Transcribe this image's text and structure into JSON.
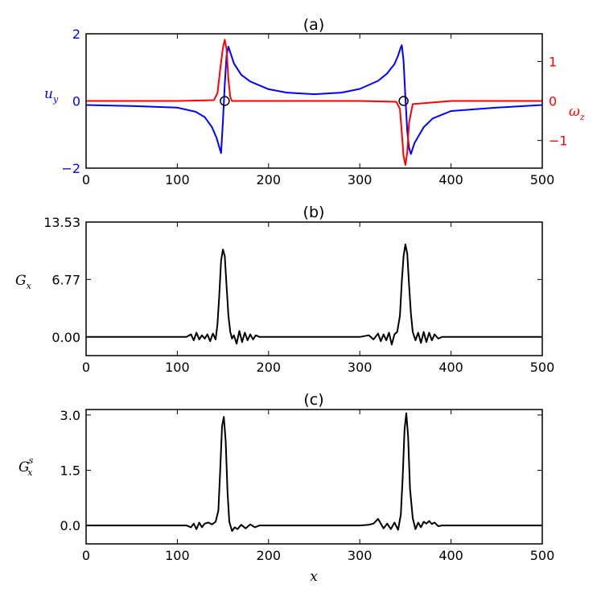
{
  "chart_data": [
    {
      "type": "line",
      "title": "(a)",
      "xlim": [
        0,
        500
      ],
      "x_ticks": [
        "0",
        "100",
        "200",
        "300",
        "400",
        "500"
      ],
      "left_axis": {
        "label_base": "u",
        "label_sub": "y",
        "color": "#0000ff",
        "ylim": [
          -2,
          2
        ],
        "ticks": [
          {
            "value": 2,
            "label": "2"
          },
          {
            "value": 0,
            "label": "0"
          },
          {
            "value": -2,
            "label": "−2"
          }
        ]
      },
      "right_axis": {
        "label_base": "ω",
        "label_sub": "z",
        "color": "#ff0000",
        "ylim": [
          -1.7,
          1.7
        ],
        "ticks": [
          {
            "value": 1,
            "label": "1"
          },
          {
            "value": 0,
            "label": "0"
          },
          {
            "value": -1,
            "label": "−1"
          }
        ]
      },
      "series": [
        {
          "axis": "left",
          "color": "#0000ff",
          "x": [
            0,
            50,
            100,
            120,
            130,
            138,
            143,
            146,
            148,
            150,
            152,
            154,
            156,
            158,
            162,
            170,
            180,
            200,
            220,
            250,
            280,
            300,
            320,
            330,
            338,
            342,
            345,
            346,
            348,
            350,
            352,
            354,
            356,
            360,
            370,
            380,
            400,
            450,
            500
          ],
          "y": [
            -0.12,
            -0.15,
            -0.2,
            -0.32,
            -0.48,
            -0.78,
            -1.1,
            -1.38,
            -1.55,
            -0.6,
            0.5,
            1.35,
            1.62,
            1.45,
            1.12,
            0.78,
            0.58,
            0.35,
            0.25,
            0.2,
            0.25,
            0.36,
            0.6,
            0.82,
            1.1,
            1.35,
            1.6,
            1.66,
            1.2,
            0.1,
            -0.9,
            -1.4,
            -1.58,
            -1.25,
            -0.78,
            -0.52,
            -0.3,
            -0.2,
            -0.12
          ]
        },
        {
          "axis": "right",
          "color": "#ff0000",
          "x": [
            0,
            100,
            140,
            144,
            147,
            150,
            152,
            154,
            156,
            158,
            160,
            200,
            250,
            300,
            340,
            344,
            346,
            348,
            350,
            352,
            354,
            358,
            400,
            500
          ],
          "y": [
            0.0,
            0.0,
            0.02,
            0.2,
            0.8,
            1.35,
            1.55,
            1.3,
            0.55,
            0.1,
            0.0,
            0.0,
            0.0,
            0.0,
            -0.02,
            -0.2,
            -0.8,
            -1.4,
            -1.62,
            -1.3,
            -0.55,
            -0.08,
            0.0,
            0.0
          ]
        }
      ],
      "markers": [
        {
          "x": 152,
          "y": 0
        },
        {
          "x": 348,
          "y": 0
        }
      ]
    },
    {
      "type": "line",
      "title": "(b)",
      "xlim": [
        0,
        500
      ],
      "ylim": [
        -2.2,
        13.53
      ],
      "x_ticks": [
        "0",
        "100",
        "200",
        "300",
        "400",
        "500"
      ],
      "y_ticks": [
        {
          "value": 13.53,
          "label": "13.53"
        },
        {
          "value": 6.77,
          "label": "6.77"
        },
        {
          "value": 0,
          "label": "0.00"
        }
      ],
      "ylabel_base": "G",
      "ylabel_sub": "x",
      "series": [
        {
          "color": "#000000",
          "x": [
            0,
            110,
            115,
            118,
            121,
            124,
            127,
            130,
            133,
            136,
            139,
            142,
            144,
            146,
            148,
            150,
            152,
            154,
            156,
            158,
            160,
            162,
            165,
            168,
            171,
            174,
            177,
            180,
            183,
            186,
            190,
            300,
            310,
            315,
            320,
            323,
            326,
            329,
            332,
            335,
            338,
            341,
            344,
            346,
            348,
            350,
            352,
            354,
            356,
            358,
            361,
            364,
            367,
            370,
            373,
            376,
            379,
            382,
            386,
            390,
            500
          ],
          "y": [
            0,
            0,
            0.3,
            -0.4,
            0.5,
            -0.3,
            0.2,
            -0.2,
            0.3,
            -0.5,
            0.4,
            -0.3,
            1.5,
            5.0,
            9.0,
            10.3,
            9.5,
            6.0,
            2.5,
            0.6,
            -0.2,
            0.2,
            -0.8,
            0.7,
            -0.6,
            0.5,
            -0.4,
            0.3,
            -0.3,
            0.2,
            0,
            0,
            0.2,
            -0.3,
            0.4,
            -0.5,
            0.3,
            -0.4,
            0.5,
            -0.9,
            0.3,
            0.6,
            2.5,
            6.5,
            9.5,
            10.9,
            9.8,
            6.2,
            2.8,
            0.6,
            -0.4,
            0.5,
            -0.7,
            0.6,
            -0.6,
            0.5,
            -0.4,
            0.3,
            -0.2,
            0,
            0
          ]
        }
      ]
    },
    {
      "type": "line",
      "title": "(c)",
      "xlim": [
        0,
        500
      ],
      "ylim": [
        -0.5,
        3.15
      ],
      "x_ticks": [
        "0",
        "100",
        "200",
        "300",
        "400",
        "500"
      ],
      "y_ticks": [
        {
          "value": 3.0,
          "label": "3.0"
        },
        {
          "value": 1.5,
          "label": "1.5"
        },
        {
          "value": 0,
          "label": "0.0"
        }
      ],
      "ylabel_base": "G",
      "ylabel_sub": "x",
      "ylabel_sup": "s",
      "xlabel": "x",
      "series": [
        {
          "color": "#000000",
          "x": [
            0,
            110,
            115,
            118,
            121,
            124,
            127,
            130,
            134,
            138,
            142,
            145,
            147,
            149,
            151,
            153,
            155,
            157,
            160,
            163,
            166,
            170,
            175,
            180,
            185,
            190,
            200,
            300,
            310,
            315,
            320,
            323,
            326,
            330,
            334,
            338,
            342,
            345,
            347,
            349,
            351,
            353,
            355,
            358,
            361,
            364,
            367,
            370,
            373,
            376,
            379,
            382,
            386,
            390,
            500
          ],
          "y": [
            0,
            0,
            -0.05,
            0.05,
            -0.1,
            0.08,
            -0.05,
            0.05,
            0.08,
            0.03,
            0.1,
            0.4,
            1.5,
            2.7,
            2.95,
            2.3,
            0.9,
            0.1,
            -0.15,
            -0.05,
            -0.1,
            0.02,
            -0.08,
            0.03,
            -0.05,
            0,
            0,
            0,
            0.02,
            0.05,
            0.18,
            0.05,
            -0.08,
            0.05,
            -0.1,
            0.08,
            -0.12,
            0.3,
            1.3,
            2.6,
            3.05,
            2.4,
            1.0,
            0.2,
            -0.1,
            0.08,
            -0.05,
            0.1,
            0.05,
            0.12,
            0.04,
            0.08,
            -0.02,
            0,
            0
          ]
        }
      ]
    }
  ]
}
